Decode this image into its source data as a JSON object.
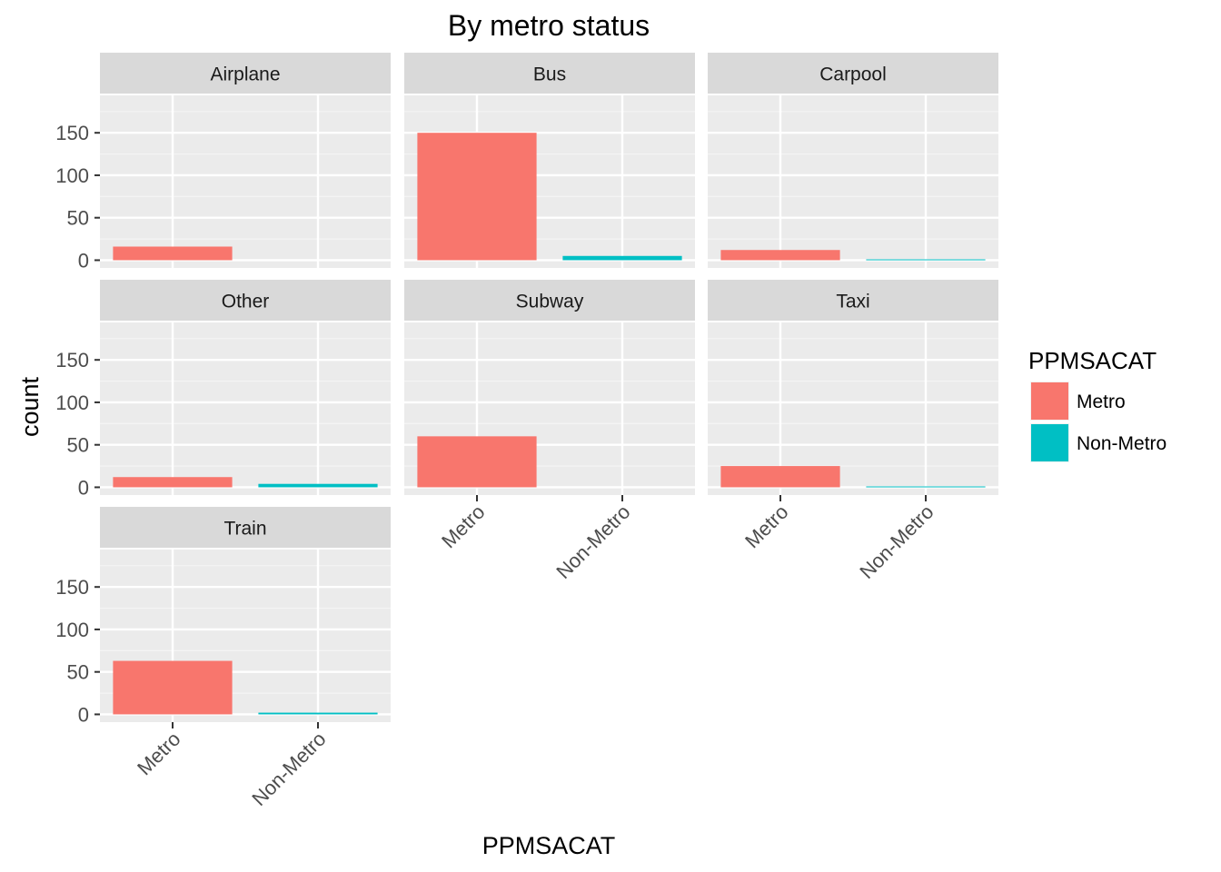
{
  "chart_data": {
    "type": "bar",
    "title": "By metro status",
    "xlabel": "PPMSACAT",
    "ylabel": "count",
    "ylim": [
      0,
      190
    ],
    "yticks": [
      0,
      50,
      100,
      150
    ],
    "grid": true,
    "categories": [
      "Metro",
      "Non-Metro"
    ],
    "legend": {
      "title": "PPMSACAT",
      "position": "right",
      "items": [
        "Metro",
        "Non-Metro"
      ]
    },
    "colors": {
      "Metro": "#F8766D",
      "Non-Metro": "#00BFC4"
    },
    "facets": [
      {
        "name": "Airplane",
        "values": [
          16,
          0
        ]
      },
      {
        "name": "Bus",
        "values": [
          150,
          5
        ]
      },
      {
        "name": "Carpool",
        "values": [
          12,
          1
        ]
      },
      {
        "name": "Other",
        "values": [
          12,
          4
        ]
      },
      {
        "name": "Subway",
        "values": [
          60,
          0
        ]
      },
      {
        "name": "Taxi",
        "values": [
          25,
          1
        ]
      },
      {
        "name": "Train",
        "values": [
          63,
          2
        ]
      }
    ]
  }
}
